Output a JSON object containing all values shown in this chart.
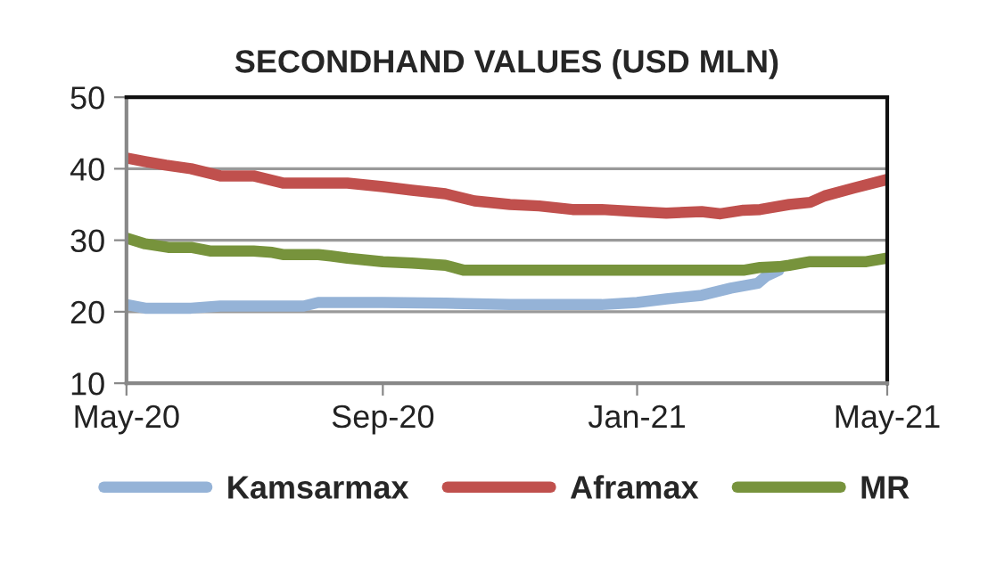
{
  "chart_data": {
    "type": "line",
    "title": "SECONDHAND VALUES (USD MLN)",
    "xlim": [
      "2020-05-01",
      "2021-05-01"
    ],
    "xticks": [
      {
        "value": "2020-05-01",
        "label": "May-20"
      },
      {
        "value": "2020-09-01",
        "label": "Sep-20"
      },
      {
        "value": "2021-01-01",
        "label": "Jan-21"
      },
      {
        "value": "2021-05-01",
        "label": "May-21"
      }
    ],
    "ylim": [
      10,
      50
    ],
    "yticks": [
      10,
      20,
      30,
      40,
      50
    ],
    "grid": "y",
    "legend": "bottom",
    "marker": "none",
    "line_style": "solid",
    "series": [
      {
        "name": "Kamsarmax",
        "color": "#95b3d7",
        "x": [
          "2020-05-01",
          "2020-05-10",
          "2020-06-01",
          "2020-06-15",
          "2020-07-01",
          "2020-07-25",
          "2020-08-01",
          "2020-09-01",
          "2020-10-01",
          "2020-11-01",
          "2020-12-01",
          "2020-12-15",
          "2021-01-01",
          "2021-01-15",
          "2021-02-01",
          "2021-02-15",
          "2021-02-28",
          "2021-03-04",
          "2021-03-10"
        ],
        "values": [
          21,
          20.5,
          20.5,
          20.8,
          20.8,
          20.8,
          21.3,
          21.3,
          21.2,
          21,
          21,
          21,
          21.3,
          21.8,
          22.3,
          23.3,
          24,
          25,
          25.8
        ]
      },
      {
        "name": "Aframax",
        "color": "#c0504d",
        "x": [
          "2020-05-01",
          "2020-05-10",
          "2020-05-20",
          "2020-06-01",
          "2020-06-15",
          "2020-07-01",
          "2020-07-15",
          "2020-08-01",
          "2020-08-15",
          "2020-09-01",
          "2020-09-15",
          "2020-10-01",
          "2020-10-15",
          "2020-11-01",
          "2020-11-15",
          "2020-12-01",
          "2020-12-15",
          "2021-01-01",
          "2021-01-15",
          "2021-02-01",
          "2021-02-10",
          "2021-02-21",
          "2021-03-01",
          "2021-03-15",
          "2021-03-25",
          "2021-04-01",
          "2021-04-15",
          "2021-05-01"
        ],
        "values": [
          41.5,
          41,
          40.5,
          40,
          39,
          39,
          38,
          38,
          38,
          37.5,
          37,
          36.5,
          35.5,
          35,
          34.8,
          34.3,
          34.3,
          34,
          33.8,
          34,
          33.7,
          34.2,
          34.3,
          35,
          35.3,
          36.2,
          37.3,
          38.5
        ]
      },
      {
        "name": "MR",
        "color": "#77933c",
        "x": [
          "2020-05-01",
          "2020-05-10",
          "2020-05-21",
          "2020-06-01",
          "2020-06-10",
          "2020-07-01",
          "2020-07-10",
          "2020-07-15",
          "2020-08-01",
          "2020-08-07",
          "2020-08-15",
          "2020-09-01",
          "2020-09-15",
          "2020-10-01",
          "2020-10-10",
          "2020-11-01",
          "2021-01-01",
          "2021-02-01",
          "2021-02-21",
          "2021-03-01",
          "2021-03-10",
          "2021-03-15",
          "2021-03-25",
          "2021-04-01",
          "2021-04-15",
          "2021-04-21",
          "2021-05-01"
        ],
        "values": [
          30.3,
          29.5,
          29,
          29,
          28.5,
          28.5,
          28.3,
          28,
          28,
          27.8,
          27.5,
          27,
          26.8,
          26.5,
          25.8,
          25.8,
          25.8,
          25.8,
          25.8,
          26.2,
          26.3,
          26.5,
          27,
          27,
          27,
          27,
          27.5
        ]
      }
    ]
  }
}
